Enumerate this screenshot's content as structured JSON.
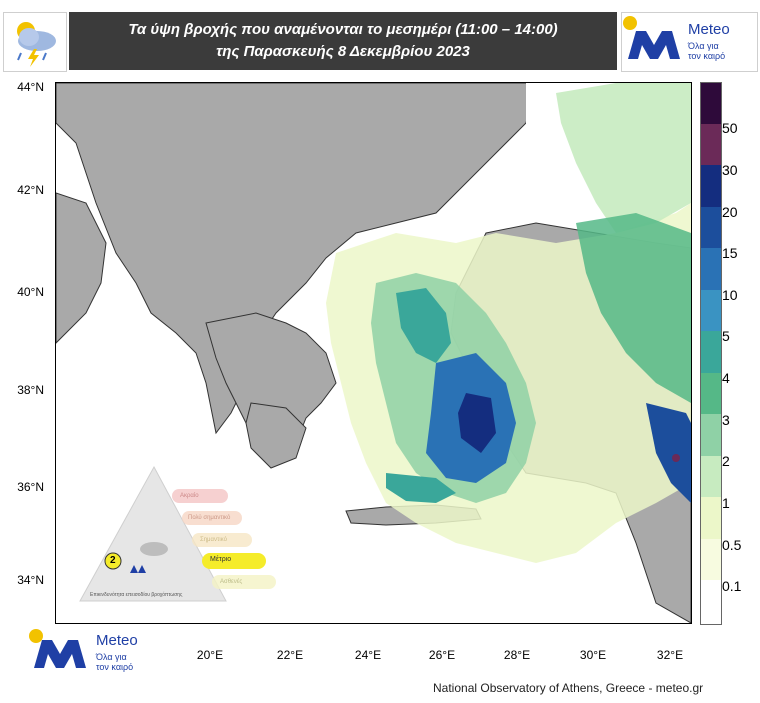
{
  "header": {
    "title_line1": "Τα ύψη βροχής που αναμένονται το μεσημέρι (11:00 – 14:00)",
    "title_line2": "της Παρασκευής 8 Δεκεμβρίου 2023",
    "weather_icon": "rain-cloud-thunder-icon"
  },
  "brand": {
    "name": "Meteo",
    "tagline_line1": "Όλα για",
    "tagline_line2": "τον καιρό",
    "logo_color": "#1f3fa5",
    "sun_color": "#f2c200"
  },
  "map": {
    "lat_labels": [
      "44°N",
      "42°N",
      "40°N",
      "38°N",
      "36°N",
      "34°N"
    ],
    "lon_labels": [
      "20°E",
      "22°E",
      "24°E",
      "26°E",
      "28°E",
      "30°E",
      "32°E"
    ],
    "land_color": "#a9a9a9",
    "sea_color": "#ffffff"
  },
  "legend": {
    "labels": [
      "50",
      "30",
      "20",
      "15",
      "10",
      "5",
      "4",
      "3",
      "2",
      "1",
      "0.5",
      "0.1"
    ],
    "colors": [
      "#2e0a3a",
      "#6b2a58",
      "#142d7f",
      "#1c4e9c",
      "#2a72b5",
      "#3a93c2",
      "#3aa79a",
      "#55b887",
      "#8fd1a6",
      "#c7ebc0",
      "#ecf7c9",
      "#f7fbe0",
      "#ffffff"
    ]
  },
  "warning_pyramid": {
    "level": "2",
    "level_label": "Μέτριο",
    "rows": [
      "Ακραίο",
      "Πολύ σημαντικό",
      "Σημαντικό",
      "Μέτριο",
      "Ασθενές"
    ],
    "caption": "Επικινδυνότητα επεισοδίου βροχόπτωσης"
  },
  "credit": "National Observatory of Athens, Greece - meteo.gr"
}
